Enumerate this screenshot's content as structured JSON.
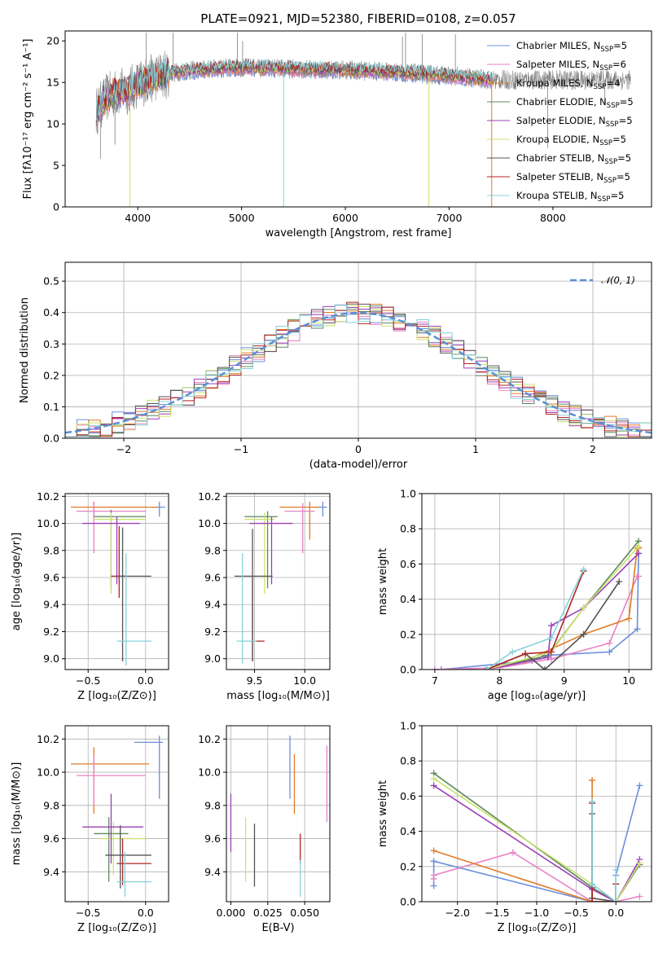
{
  "colors": {
    "Chabrier MILES": "#6a8fdc",
    "Salpeter MILES": "#e882c4",
    "Kroupa MILES": "#e07b25",
    "Chabrier ELODIE": "#5c8a5c",
    "Salpeter ELODIE": "#9b3fb5",
    "Kroupa ELODIE": "#cde26e",
    "Chabrier STELIB": "#555555",
    "Salpeter STELIB": "#b22424",
    "Kroupa STELIB": "#86d2da",
    "data": "#808080",
    "normal": "#5b8fd6"
  },
  "chart_data": [
    {
      "id": "spectrum",
      "type": "line",
      "title": "PLATE=0921, MJD=52380, FIBERID=0108, z=0.057",
      "xlabel": "wavelength [Angstrom, rest frame]",
      "ylabel": "Flux [fλ10⁻¹⁷ erg cm⁻² s⁻¹ A⁻¹]",
      "xlim": [
        3300,
        8950
      ],
      "ylim": [
        0,
        21.2
      ],
      "xticks": [
        "4000",
        "5000",
        "6000",
        "7000",
        "8000"
      ],
      "yticks": [
        "0",
        "5",
        "10",
        "15",
        "20"
      ],
      "legend": [
        {
          "model": "Chabrier MILES",
          "label": "Chabrier MILES, N",
          "n": "=5"
        },
        {
          "model": "Salpeter MILES",
          "label": "Salpeter MILES, N",
          "n": "=6"
        },
        {
          "model": "Kroupa MILES",
          "label": "Kroupa MILES, N",
          "n": "=4"
        },
        {
          "model": "Chabrier ELODIE",
          "label": "Chabrier ELODIE, N",
          "n": "=5"
        },
        {
          "model": "Salpeter ELODIE",
          "label": "Salpeter ELODIE, N",
          "n": "=5"
        },
        {
          "model": "Kroupa ELODIE",
          "label": "Kroupa ELODIE, N",
          "n": "=5"
        },
        {
          "model": "Chabrier STELIB",
          "label": "Chabrier STELIB, N",
          "n": "=5"
        },
        {
          "model": "Salpeter STELIB",
          "label": "Salpeter STELIB, N",
          "n": "=5"
        },
        {
          "model": "Kroupa STELIB",
          "label": "Kroupa STELIB, N",
          "n": "=5"
        }
      ],
      "legend_sub": "SSP",
      "legend_position": "upper-right",
      "continuum": [
        [
          3600,
          11.5
        ],
        [
          3700,
          13.2
        ],
        [
          3800,
          13.8
        ],
        [
          3900,
          14.0
        ],
        [
          4000,
          14.8
        ],
        [
          4200,
          15.8
        ],
        [
          4400,
          16.3
        ],
        [
          4700,
          16.6
        ],
        [
          5000,
          16.8
        ],
        [
          5500,
          16.6
        ],
        [
          6000,
          16.5
        ],
        [
          6500,
          16.2
        ],
        [
          7000,
          15.8
        ],
        [
          7400,
          15.3
        ]
      ],
      "data_range": [
        3600,
        8750
      ],
      "data_spikes": [
        [
          3640,
          5.8
        ],
        [
          3780,
          7.5
        ],
        [
          4080,
          21
        ],
        [
          4340,
          21
        ],
        [
          4960,
          21
        ],
        [
          5010,
          20
        ],
        [
          6550,
          20.5
        ],
        [
          6580,
          21
        ],
        [
          6740,
          20.8
        ],
        [
          7060,
          20.8
        ],
        [
          7950,
          7.1
        ],
        [
          8500,
          12.5
        ]
      ],
      "drops": [
        [
          3925,
          0,
          "Kroupa ELODIE"
        ],
        [
          5405,
          0,
          "Kroupa STELIB"
        ],
        [
          6805,
          0,
          "Kroupa ELODIE"
        ],
        [
          7410,
          0,
          "Kroupa MILES"
        ]
      ]
    },
    {
      "id": "residuals",
      "type": "histogram",
      "xlabel": "(data-model)/error",
      "ylabel": "Normed distribution",
      "xlim": [
        -2.5,
        2.5
      ],
      "ylim": [
        0,
        0.56
      ],
      "xticks": [
        "−2",
        "−1",
        "0",
        "1",
        "2"
      ],
      "yticks": [
        "0.0",
        "0.1",
        "0.2",
        "0.3",
        "0.4",
        "0.5"
      ],
      "legend": "𝒩(0, 1)",
      "legend_position": "upper-right",
      "bin_width": 0.1,
      "bin_start": -2.5
    },
    {
      "id": "age-vs-Z",
      "type": "errorbar",
      "xlabel": "Z [log₁₀(Z/Z⊙)]",
      "ylabel": "age  [log₁₀(age/yr)]",
      "xlim": [
        -0.7,
        0.2
      ],
      "ylim": [
        8.92,
        10.22
      ],
      "xticks": [
        "−0.5",
        "0.0"
      ],
      "yticks": [
        "9.0",
        "9.2",
        "9.4",
        "9.6",
        "9.8",
        "10.0",
        "10.2"
      ],
      "points": [
        {
          "model": "Chabrier MILES",
          "x": 0.12,
          "xlo": 0.05,
          "xhi": 0.17,
          "y": 10.12,
          "ylo": 10.05,
          "yhi": 10.16
        },
        {
          "model": "Kroupa MILES",
          "x": -0.45,
          "xlo": -0.65,
          "xhi": 0.1,
          "y": 10.12,
          "ylo": 10.05,
          "yhi": 10.16
        },
        {
          "model": "Salpeter MILES",
          "x": -0.45,
          "xlo": -0.6,
          "xhi": 0.0,
          "y": 10.09,
          "ylo": 9.78,
          "yhi": 10.15
        },
        {
          "model": "Chabrier ELODIE",
          "x": -0.3,
          "xlo": -0.45,
          "xhi": 0.0,
          "y": 10.05,
          "ylo": 9.52,
          "yhi": 10.1
        },
        {
          "model": "Kroupa ELODIE",
          "x": -0.3,
          "xlo": -0.45,
          "xhi": 0.0,
          "y": 10.03,
          "ylo": 9.48,
          "yhi": 10.08
        },
        {
          "model": "Salpeter ELODIE",
          "x": -0.25,
          "xlo": -0.55,
          "xhi": -0.05,
          "y": 10.0,
          "ylo": 9.55,
          "yhi": 10.05
        },
        {
          "model": "Salpeter STELIB",
          "x": -0.23,
          "xlo": -0.3,
          "xhi": -0.17,
          "y": 9.61,
          "ylo": 9.45,
          "yhi": 9.98
        },
        {
          "model": "Chabrier STELIB",
          "x": -0.2,
          "xlo": -0.25,
          "xhi": 0.05,
          "y": 9.61,
          "ylo": 8.98,
          "yhi": 9.97
        },
        {
          "model": "Kroupa STELIB",
          "x": -0.17,
          "xlo": -0.25,
          "xhi": 0.05,
          "y": 9.13,
          "ylo": 8.95,
          "yhi": 9.78
        }
      ]
    },
    {
      "id": "age-vs-mass",
      "type": "errorbar",
      "xlabel": "mass [log₁₀(M/M⊙)]",
      "ylabel": "",
      "xlim": [
        9.22,
        10.25
      ],
      "ylim": [
        8.92,
        10.22
      ],
      "xticks": [
        "9.5",
        "10.0"
      ],
      "yticks": [
        "9.0",
        "9.2",
        "9.4",
        "9.6",
        "9.8",
        "10.0",
        "10.2"
      ],
      "points": [
        {
          "model": "Chabrier MILES",
          "x": 10.18,
          "xlo": 10.1,
          "xhi": 10.22,
          "y": 10.12,
          "ylo": 10.05,
          "yhi": 10.16
        },
        {
          "model": "Kroupa MILES",
          "x": 10.05,
          "xlo": 9.75,
          "xhi": 10.15,
          "y": 10.12,
          "ylo": 9.88,
          "yhi": 10.16
        },
        {
          "model": "Salpeter MILES",
          "x": 9.98,
          "xlo": 9.8,
          "xhi": 10.1,
          "y": 10.09,
          "ylo": 9.78,
          "yhi": 10.15
        },
        {
          "model": "Chabrier ELODIE",
          "x": 9.63,
          "xlo": 9.4,
          "xhi": 9.73,
          "y": 10.05,
          "ylo": 9.52,
          "yhi": 10.09
        },
        {
          "model": "Kroupa ELODIE",
          "x": 9.6,
          "xlo": 9.4,
          "xhi": 9.7,
          "y": 10.03,
          "ylo": 9.48,
          "yhi": 10.08
        },
        {
          "model": "Salpeter ELODIE",
          "x": 9.67,
          "xlo": 9.45,
          "xhi": 9.88,
          "y": 10.0,
          "ylo": 9.55,
          "yhi": 10.05
        },
        {
          "model": "Salpeter STELIB",
          "x": 9.48,
          "xlo": 9.45,
          "xhi": 9.6,
          "y": 9.13,
          "ylo": 8.98,
          "yhi": 9.6
        },
        {
          "model": "Chabrier STELIB",
          "x": 9.48,
          "xlo": 9.3,
          "xhi": 9.68,
          "y": 9.61,
          "ylo": 8.98,
          "yhi": 9.96
        },
        {
          "model": "Kroupa STELIB",
          "x": 9.38,
          "xlo": 9.32,
          "xhi": 9.52,
          "y": 9.13,
          "ylo": 8.96,
          "yhi": 9.78
        }
      ]
    },
    {
      "id": "weight-vs-age",
      "type": "line",
      "xlabel": "age  [log₁₀(age/yr)]",
      "ylabel": "mass weight",
      "xlim": [
        6.8,
        10.35
      ],
      "ylim": [
        0,
        1.0
      ],
      "xticks": [
        "7",
        "8",
        "9",
        "10"
      ],
      "yticks": [
        "0.0",
        "0.2",
        "0.4",
        "0.6",
        "0.8",
        "1.0"
      ],
      "series": [
        {
          "model": "Chabrier MILES",
          "x": [
            7.0,
            7.1,
            8.5,
            8.7,
            9.7,
            10.13,
            10.15
          ],
          "y": [
            0.0,
            0.0,
            0.05,
            0.08,
            0.1,
            0.23,
            0.66
          ]
        },
        {
          "model": "Salpeter MILES",
          "x": [
            7.0,
            8.0,
            8.8,
            9.7,
            10.13,
            10.15
          ],
          "y": [
            0.0,
            0.01,
            0.06,
            0.15,
            0.53,
            0.53
          ]
        },
        {
          "model": "Kroupa MILES",
          "x": [
            7.8,
            8.4,
            9.3,
            10.0,
            10.13,
            10.15
          ],
          "y": [
            0.0,
            0.05,
            0.2,
            0.29,
            0.69,
            0.69
          ]
        },
        {
          "model": "Chabrier ELODIE",
          "x": [
            7.8,
            8.75,
            9.3,
            10.15
          ],
          "y": [
            0.0,
            0.08,
            0.35,
            0.73
          ]
        },
        {
          "model": "Salpeter ELODIE",
          "x": [
            7.8,
            8.75,
            8.8,
            9.3,
            10.15
          ],
          "y": [
            0.0,
            0.07,
            0.25,
            0.35,
            0.66
          ]
        },
        {
          "model": "Kroupa ELODIE",
          "x": [
            7.8,
            8.8,
            9.3,
            10.15
          ],
          "y": [
            0.0,
            0.1,
            0.35,
            0.7
          ]
        },
        {
          "model": "Chabrier STELIB",
          "x": [
            7.8,
            8.4,
            8.7,
            9.3,
            9.85
          ],
          "y": [
            0.0,
            0.09,
            0.0,
            0.2,
            0.5
          ]
        },
        {
          "model": "Salpeter STELIB",
          "x": [
            7.8,
            8.4,
            8.8,
            9.3
          ],
          "y": [
            0.0,
            0.09,
            0.1,
            0.56
          ]
        },
        {
          "model": "Kroupa STELIB",
          "x": [
            7.8,
            8.2,
            8.8,
            9.3
          ],
          "y": [
            0.0,
            0.1,
            0.18,
            0.57
          ]
        }
      ]
    },
    {
      "id": "mass-vs-Z",
      "type": "errorbar",
      "xlabel": "Z [log₁₀(Z/Z⊙)]",
      "ylabel": "mass [log₁₀(M/M⊙)]",
      "xlim": [
        -0.7,
        0.2
      ],
      "ylim": [
        9.22,
        10.28
      ],
      "xticks": [
        "−0.5",
        "0.0"
      ],
      "yticks": [
        "9.4",
        "9.6",
        "9.8",
        "10.0",
        "10.2"
      ],
      "points": [
        {
          "model": "Chabrier MILES",
          "x": 0.12,
          "xlo": -0.1,
          "xhi": 0.15,
          "y": 10.18,
          "ylo": 9.84,
          "yhi": 10.22
        },
        {
          "model": "Kroupa MILES",
          "x": -0.45,
          "xlo": -0.65,
          "xhi": 0.03,
          "y": 10.05,
          "ylo": 9.75,
          "yhi": 10.15
        },
        {
          "model": "Salpeter MILES",
          "x": -0.45,
          "xlo": -0.6,
          "xhi": 0.0,
          "y": 9.98,
          "ylo": 9.8,
          "yhi": 10.1
        },
        {
          "model": "Chabrier ELODIE",
          "x": -0.32,
          "xlo": -0.45,
          "xhi": -0.15,
          "y": 9.63,
          "ylo": 9.34,
          "yhi": 9.73
        },
        {
          "model": "Kroupa ELODIE",
          "x": -0.28,
          "xlo": -0.4,
          "xhi": 0.0,
          "y": 9.6,
          "ylo": 9.38,
          "yhi": 9.7
        },
        {
          "model": "Salpeter ELODIE",
          "x": -0.3,
          "xlo": -0.55,
          "xhi": -0.02,
          "y": 9.67,
          "ylo": 9.45,
          "yhi": 9.87
        },
        {
          "model": "Salpeter STELIB",
          "x": -0.2,
          "xlo": -0.25,
          "xhi": 0.05,
          "y": 9.45,
          "ylo": 9.32,
          "yhi": 9.6
        },
        {
          "model": "Chabrier STELIB",
          "x": -0.22,
          "xlo": -0.35,
          "xhi": 0.05,
          "y": 9.5,
          "ylo": 9.3,
          "yhi": 9.68
        },
        {
          "model": "Kroupa STELIB",
          "x": -0.18,
          "xlo": -0.25,
          "xhi": 0.05,
          "y": 9.34,
          "ylo": 9.25,
          "yhi": 9.52
        }
      ]
    },
    {
      "id": "mass-vs-EBV",
      "type": "errorbar",
      "xlabel": "E(B-V)",
      "ylabel": "",
      "xlim": [
        -0.003,
        0.067
      ],
      "ylim": [
        9.22,
        10.28
      ],
      "xticks": [
        "0.000",
        "0.025",
        "0.050"
      ],
      "yticks": [
        "9.4",
        "9.6",
        "9.8",
        "10.0",
        "10.2"
      ],
      "points": [
        {
          "model": "Salpeter ELODIE",
          "x": 0.0,
          "ylo": 9.52,
          "yhi": 9.87
        },
        {
          "model": "Kroupa ELODIE",
          "x": 0.01,
          "ylo": 9.34,
          "yhi": 9.73
        },
        {
          "model": "Chabrier STELIB",
          "x": 0.016,
          "ylo": 9.31,
          "yhi": 9.69
        },
        {
          "model": "Chabrier MILES",
          "x": 0.04,
          "ylo": 9.84,
          "yhi": 10.22
        },
        {
          "model": "Kroupa MILES",
          "x": 0.043,
          "ylo": 9.75,
          "yhi": 10.11
        },
        {
          "model": "Salpeter STELIB",
          "x": 0.047,
          "ylo": 9.45,
          "yhi": 9.63
        },
        {
          "model": "Kroupa STELIB",
          "x": 0.047,
          "ylo": 9.25,
          "yhi": 9.47
        },
        {
          "model": "Salpeter MILES",
          "x": 0.065,
          "ylo": 9.7,
          "yhi": 10.16
        }
      ]
    },
    {
      "id": "weight-vs-Z",
      "type": "line",
      "xlabel": "Z [log₁₀(Z/Z⊙)]",
      "ylabel": "mass weight",
      "xlim": [
        -2.45,
        0.45
      ],
      "ylim": [
        0,
        1.0
      ],
      "xticks": [
        "−2.0",
        "−1.5",
        "−1.0",
        "−0.5",
        "0.0"
      ],
      "yticks": [
        "0.0",
        "0.2",
        "0.4",
        "0.6",
        "0.8",
        "1.0"
      ],
      "series": [
        {
          "model": "Chabrier MILES",
          "x": [
            -2.3,
            -2.3,
            -0.3,
            0.0,
            0.0,
            0.3
          ],
          "y": [
            0.09,
            0.23,
            0.0,
            0.0,
            0.15,
            0.66
          ]
        },
        {
          "model": "Salpeter MILES",
          "x": [
            -2.3,
            -2.3,
            -1.3,
            -0.3,
            0.0,
            0.3
          ],
          "y": [
            0.13,
            0.15,
            0.28,
            0.0,
            0.0,
            0.03
          ]
        },
        {
          "model": "Kroupa MILES",
          "x": [
            -2.3,
            -0.3,
            -0.3,
            -0.3,
            0.0
          ],
          "y": [
            0.29,
            0.0,
            0.69,
            0.0,
            0.0
          ]
        },
        {
          "model": "Chabrier ELODIE",
          "x": [
            -2.3,
            -0.3,
            0.0,
            0.3
          ],
          "y": [
            0.73,
            0.08,
            0.0,
            0.21
          ]
        },
        {
          "model": "Salpeter ELODIE",
          "x": [
            -2.3,
            -0.3,
            0.0,
            0.3
          ],
          "y": [
            0.66,
            0.07,
            0.0,
            0.24
          ]
        },
        {
          "model": "Kroupa ELODIE",
          "x": [
            -2.3,
            -0.3,
            0.0,
            0.3
          ],
          "y": [
            0.7,
            0.1,
            0.0,
            0.22
          ]
        },
        {
          "model": "Chabrier STELIB",
          "x": [
            -0.3,
            -0.3,
            0.0,
            0.0
          ],
          "y": [
            0.5,
            0.02,
            0.0,
            0.1
          ]
        },
        {
          "model": "Salpeter STELIB",
          "x": [
            -0.3,
            -0.3,
            0.0,
            0.0
          ],
          "y": [
            0.56,
            0.0,
            0.0,
            0.1
          ]
        },
        {
          "model": "Kroupa STELIB",
          "x": [
            -0.3,
            -0.3,
            0.0,
            0.0
          ],
          "y": [
            0.57,
            0.1,
            0.0,
            0.18
          ]
        }
      ]
    }
  ]
}
